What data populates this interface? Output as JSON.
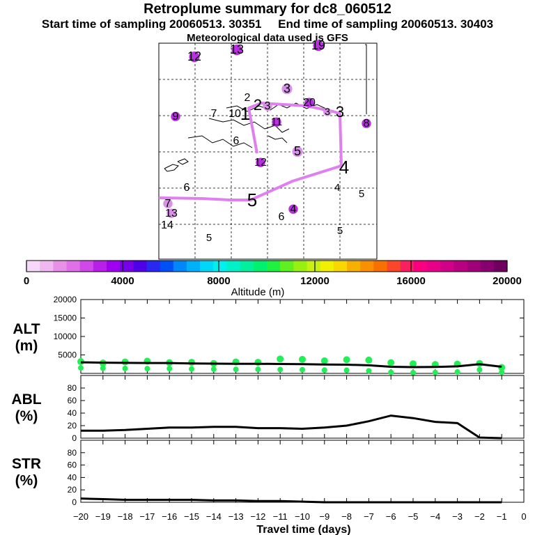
{
  "header": {
    "title": "Retroplume summary for dc8_060512",
    "start_label": "Start time of sampling 20060513. 30351",
    "end_label": "End time of sampling 20060513. 30403",
    "met_label": "Meteorological data used is GFS"
  },
  "colorbar": {
    "label": "Altitude (m)",
    "ticks": [
      "0",
      "4000",
      "8000",
      "12000",
      "16000",
      "20000"
    ],
    "colors": [
      "#f8d8f8",
      "#f0b8f0",
      "#e890e8",
      "#e070e8",
      "#d048e8",
      "#b820e8",
      "#a000f0",
      "#7800e8",
      "#5000e8",
      "#2828f0",
      "#0050f8",
      "#0088f8",
      "#00b0f8",
      "#00d8f8",
      "#00f0f0",
      "#00f0c8",
      "#00f0a0",
      "#00f070",
      "#20f040",
      "#60f020",
      "#98f010",
      "#c8f010",
      "#f0f000",
      "#f8d800",
      "#f8b000",
      "#f89000",
      "#f87000",
      "#f84828",
      "#f82060",
      "#f80080",
      "#e80088",
      "#d00088",
      "#b80080",
      "#a00078",
      "#880070",
      "#700060"
    ]
  },
  "map": {
    "labels": [
      {
        "t": "12",
        "c": "#b830e0",
        "s": 18
      },
      {
        "t": "13",
        "c": "#b830e0",
        "s": 18
      },
      {
        "t": "19",
        "c": "#b830e0",
        "s": 18
      },
      {
        "t": "3",
        "c": "#d890e8",
        "s": 18
      },
      {
        "t": "2",
        "c": "",
        "s": 16
      },
      {
        "t": "3",
        "c": "#d890e8",
        "s": 16
      },
      {
        "t": "2",
        "c": "",
        "s": 22
      },
      {
        "t": "20",
        "c": "#b830e0",
        "s": 16
      },
      {
        "t": "3",
        "c": "#d890e8",
        "s": 14
      },
      {
        "t": "3",
        "c": "",
        "s": 22
      },
      {
        "t": "7",
        "c": "",
        "s": 16
      },
      {
        "t": "10",
        "c": "",
        "s": 16
      },
      {
        "t": "1",
        "c": "",
        "s": 26
      },
      {
        "t": "9",
        "c": "#b830e0",
        "s": 16
      },
      {
        "t": "11",
        "c": "#b830e0",
        "s": 16
      },
      {
        "t": "8",
        "c": "#b830e0",
        "s": 16
      },
      {
        "t": "6",
        "c": "",
        "s": 16
      },
      {
        "t": "5",
        "c": "#d890e8",
        "s": 18
      },
      {
        "t": "12",
        "c": "#b830e0",
        "s": 16
      },
      {
        "t": "4",
        "c": "",
        "s": 26
      },
      {
        "t": "6",
        "c": "",
        "s": 16
      },
      {
        "t": "4",
        "c": "",
        "s": 15
      },
      {
        "t": "5",
        "c": "",
        "s": 15
      },
      {
        "t": "5",
        "c": "",
        "s": 26
      },
      {
        "t": "7",
        "c": "#d890e8",
        "s": 16
      },
      {
        "t": "13",
        "c": "#d890e8",
        "s": 16
      },
      {
        "t": "4",
        "c": "#b830e0",
        "s": 16
      },
      {
        "t": "6",
        "c": "",
        "s": 16
      },
      {
        "t": "14",
        "c": "",
        "s": 16
      },
      {
        "t": "5",
        "c": "",
        "s": 15
      },
      {
        "t": "5",
        "c": "",
        "s": 15
      }
    ]
  },
  "panels": {
    "alt": {
      "label1": "ALT",
      "label2": "(m)",
      "ticks": [
        "5000",
        "10000",
        "15000",
        "20000"
      ]
    },
    "abl": {
      "label1": "ABL",
      "label2": "(%)",
      "ticks": [
        "0",
        "20",
        "40",
        "60",
        "80"
      ]
    },
    "str": {
      "label1": "STR",
      "label2": "(%)",
      "ticks": [
        "0",
        "20",
        "40",
        "60",
        "80"
      ]
    },
    "xticks": [
      "−20",
      "−19",
      "−18",
      "−17",
      "−16",
      "−15",
      "−14",
      "−13",
      "−12",
      "−11",
      "−10",
      "−9",
      "−8",
      "−7",
      "−6",
      "−5",
      "−4",
      "−3",
      "−2",
      "−1",
      "0"
    ],
    "xlabel": "Travel time (days)"
  },
  "chart_data": [
    {
      "type": "line",
      "title": "ALT (m)",
      "x": [
        -20,
        -19,
        -18,
        -17,
        -16,
        -15,
        -14,
        -13,
        -12,
        -11,
        -10,
        -9,
        -8,
        -7,
        -6,
        -5,
        -4,
        -3,
        -2,
        -1
      ],
      "ylim": [
        0,
        20000
      ],
      "series": [
        {
          "name": "median altitude",
          "values": [
            3000,
            2900,
            2850,
            2800,
            2800,
            2700,
            2650,
            2600,
            2600,
            2550,
            2500,
            2400,
            2350,
            2200,
            1800,
            1700,
            1750,
            1900,
            2500,
            1800
          ]
        },
        {
          "name": "plume altitude points",
          "values": [
            3200,
            2800,
            3100,
            3300,
            2900,
            3000,
            2700,
            3100,
            3000,
            3900,
            3800,
            3400,
            3700,
            3600,
            2900,
            2600,
            2400,
            2500,
            2700,
            1600
          ]
        }
      ]
    },
    {
      "type": "line",
      "title": "ABL (%)",
      "x": [
        -20,
        -19,
        -18,
        -17,
        -16,
        -15,
        -14,
        -13,
        -12,
        -11,
        -10,
        -9,
        -8,
        -7,
        -6,
        -5,
        -4,
        -3,
        -2,
        -1
      ],
      "ylim": [
        0,
        100
      ],
      "series": [
        {
          "name": "ABL",
          "values": [
            12,
            12,
            13,
            15,
            17,
            17,
            18,
            18,
            16,
            16,
            15,
            17,
            20,
            27,
            36,
            32,
            26,
            24,
            1,
            0
          ]
        }
      ]
    },
    {
      "type": "line",
      "title": "STR (%)",
      "x": [
        -20,
        -19,
        -18,
        -17,
        -16,
        -15,
        -14,
        -13,
        -12,
        -11,
        -10,
        -9,
        -8,
        -7,
        -6,
        -5,
        -4,
        -3,
        -2,
        -1
      ],
      "ylim": [
        0,
        100
      ],
      "series": [
        {
          "name": "STR",
          "values": [
            6,
            5,
            4,
            4,
            4,
            4,
            3,
            3,
            2,
            2,
            1,
            0,
            0,
            0,
            0,
            0,
            0,
            0,
            0,
            0
          ]
        }
      ]
    }
  ]
}
